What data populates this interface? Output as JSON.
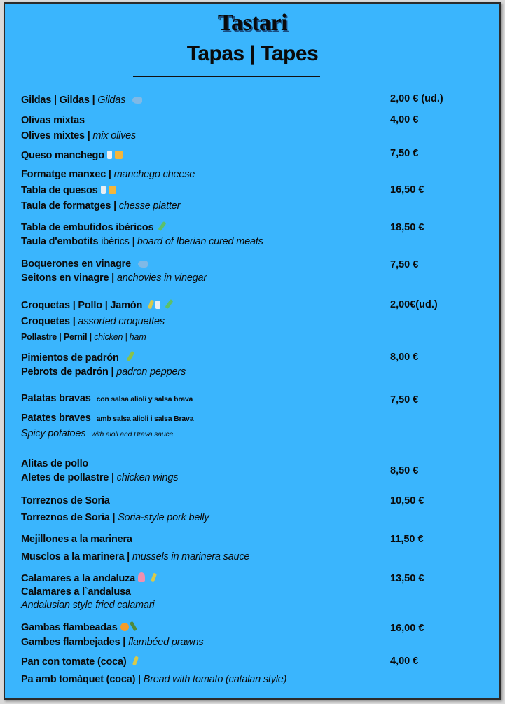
{
  "header": {
    "title": "Tastari",
    "subtitle": "Tapas | Tapes"
  },
  "colors": {
    "background": "#3ab5fd",
    "text": "#0a0a0a"
  },
  "items": [
    {
      "price": "2,00 € (ud.)",
      "lines": [
        {
          "segs": [
            [
              "b",
              "Gildas |  Gildas | "
            ],
            [
              "i",
              "Gildas"
            ]
          ],
          "icons": [
            "fish"
          ]
        }
      ]
    },
    {
      "price": "4,00 €",
      "lines": [
        {
          "segs": [
            [
              "b",
              "Olivas mixtas"
            ]
          ]
        },
        {
          "segs": [
            [
              "b",
              "Olives mixtes | "
            ],
            [
              "i",
              "mix olives"
            ]
          ]
        }
      ]
    },
    {
      "price": "7,50 €",
      "lines": [
        {
          "segs": [
            [
              "b",
              "Queso manchego"
            ]
          ],
          "icons": [
            "glass",
            "cheese"
          ]
        },
        {
          "segs": [
            [
              "b",
              "Formatge manxec | "
            ],
            [
              "i",
              "manchego cheese"
            ]
          ]
        }
      ]
    },
    {
      "price": "16,50 €",
      "lines": [
        {
          "segs": [
            [
              "b",
              "Tabla de quesos"
            ]
          ],
          "icons": [
            "glass",
            "cheese"
          ]
        },
        {
          "segs": [
            [
              "b",
              "Taula de formatges | "
            ],
            [
              "i",
              "chesse platter"
            ]
          ]
        }
      ]
    },
    {
      "price": "18,50 €",
      "lines": [
        {
          "segs": [
            [
              "b",
              "Tabla de embutidos ibéricos"
            ]
          ],
          "icons": [
            "sausage"
          ]
        },
        {
          "segs": [
            [
              "b",
              "Taula d'embotits "
            ],
            [
              "r",
              "ibérics | "
            ],
            [
              "i",
              "board of Iberian cured meats"
            ]
          ]
        }
      ]
    },
    {
      "price": "7,50 €",
      "lines": [
        {
          "segs": [
            [
              "b",
              "Boquerones en vinagre"
            ]
          ],
          "icons": [
            "fish"
          ]
        },
        {
          "segs": [
            [
              "b",
              "Seitons en vinagre | "
            ],
            [
              "i",
              "anchovies in vinegar"
            ]
          ]
        }
      ]
    },
    {
      "price": "2,00€(ud.)",
      "lines": [
        {
          "segs": [
            [
              "b",
              "Croquetas | Pollo | Jamón"
            ]
          ],
          "icons": [
            "wheat",
            "glass",
            "sausage"
          ]
        },
        {
          "segs": [
            [
              "b",
              "Croquetes | "
            ],
            [
              "i",
              "assorted croquettes"
            ]
          ]
        },
        {
          "segs": [
            [
              "b",
              "Pollastre | Pernil | "
            ],
            [
              "i",
              "chicken | ham"
            ]
          ],
          "small": true
        }
      ]
    },
    {
      "price": "8,00 €",
      "lines": [
        {
          "segs": [
            [
              "b",
              "Pimientos de padrón"
            ]
          ],
          "icons": [
            "herb"
          ]
        },
        {
          "segs": [
            [
              "b",
              "Pebrots de padrón | "
            ],
            [
              "i",
              "padron peppers"
            ]
          ]
        }
      ]
    },
    {
      "price": "7,50 €",
      "lines": [
        {
          "segs": [
            [
              "b",
              "Patatas bravas"
            ],
            [
              "sb",
              "con salsa alioli y salsa brava"
            ]
          ]
        },
        {
          "segs": [
            [
              "b",
              "Patates braves"
            ],
            [
              "sb",
              "amb salsa alioli i salsa Brava"
            ]
          ]
        },
        {
          "segs": [
            [
              "i",
              "Spicy potatoes"
            ],
            [
              "si",
              "with aioli and Brava sauce"
            ]
          ]
        }
      ]
    },
    {
      "price": "8,50 €",
      "lines": [
        {
          "segs": [
            [
              "b",
              "Alitas de pollo"
            ]
          ]
        },
        {
          "segs": [
            [
              "b",
              "Aletes de pollastre | "
            ],
            [
              "i",
              "chicken wings"
            ]
          ]
        }
      ]
    },
    {
      "price": "10,50 €",
      "lines": [
        {
          "segs": [
            [
              "b",
              "Torreznos de Soria"
            ]
          ]
        },
        {
          "segs": [
            [
              "b",
              "Torreznos de Soria | "
            ],
            [
              "i",
              "Soria-style pork belly"
            ]
          ]
        }
      ]
    },
    {
      "price": "11,50 €",
      "lines": [
        {
          "segs": [
            [
              "b",
              "Mejillones a la marinera"
            ]
          ]
        },
        {
          "segs": [
            [
              "b",
              "Musclos a la marinera | "
            ],
            [
              "i",
              "mussels in marinera sauce"
            ]
          ]
        }
      ]
    },
    {
      "price": "13,50 €",
      "lines": [
        {
          "segs": [
            [
              "b",
              "Calamares a la andaluza"
            ]
          ],
          "icons": [
            "squid",
            "wheat"
          ]
        },
        {
          "segs": [
            [
              "b",
              "Calamares a l`andalusa"
            ]
          ]
        },
        {
          "segs": [
            [
              "i",
              "Andalusian style fried calamari"
            ]
          ]
        }
      ]
    },
    {
      "price": "16,00 €",
      "lines": [
        {
          "segs": [
            [
              "b",
              "Gambas flambeadas"
            ]
          ],
          "icons": [
            "prawn",
            "bottle"
          ]
        },
        {
          "segs": [
            [
              "b",
              "Gambes flambejades  | "
            ],
            [
              "i",
              "flambéed prawns"
            ]
          ]
        }
      ]
    },
    {
      "price": "4,00 €",
      "lines": [
        {
          "segs": [
            [
              "b",
              "Pan con tomate (coca)"
            ]
          ],
          "icons": [
            "wheat"
          ]
        },
        {
          "segs": [
            [
              "b",
              "Pa amb tomàquet (coca) | "
            ],
            [
              "i",
              "Bread with tomato (catalan style)"
            ]
          ]
        }
      ]
    }
  ]
}
